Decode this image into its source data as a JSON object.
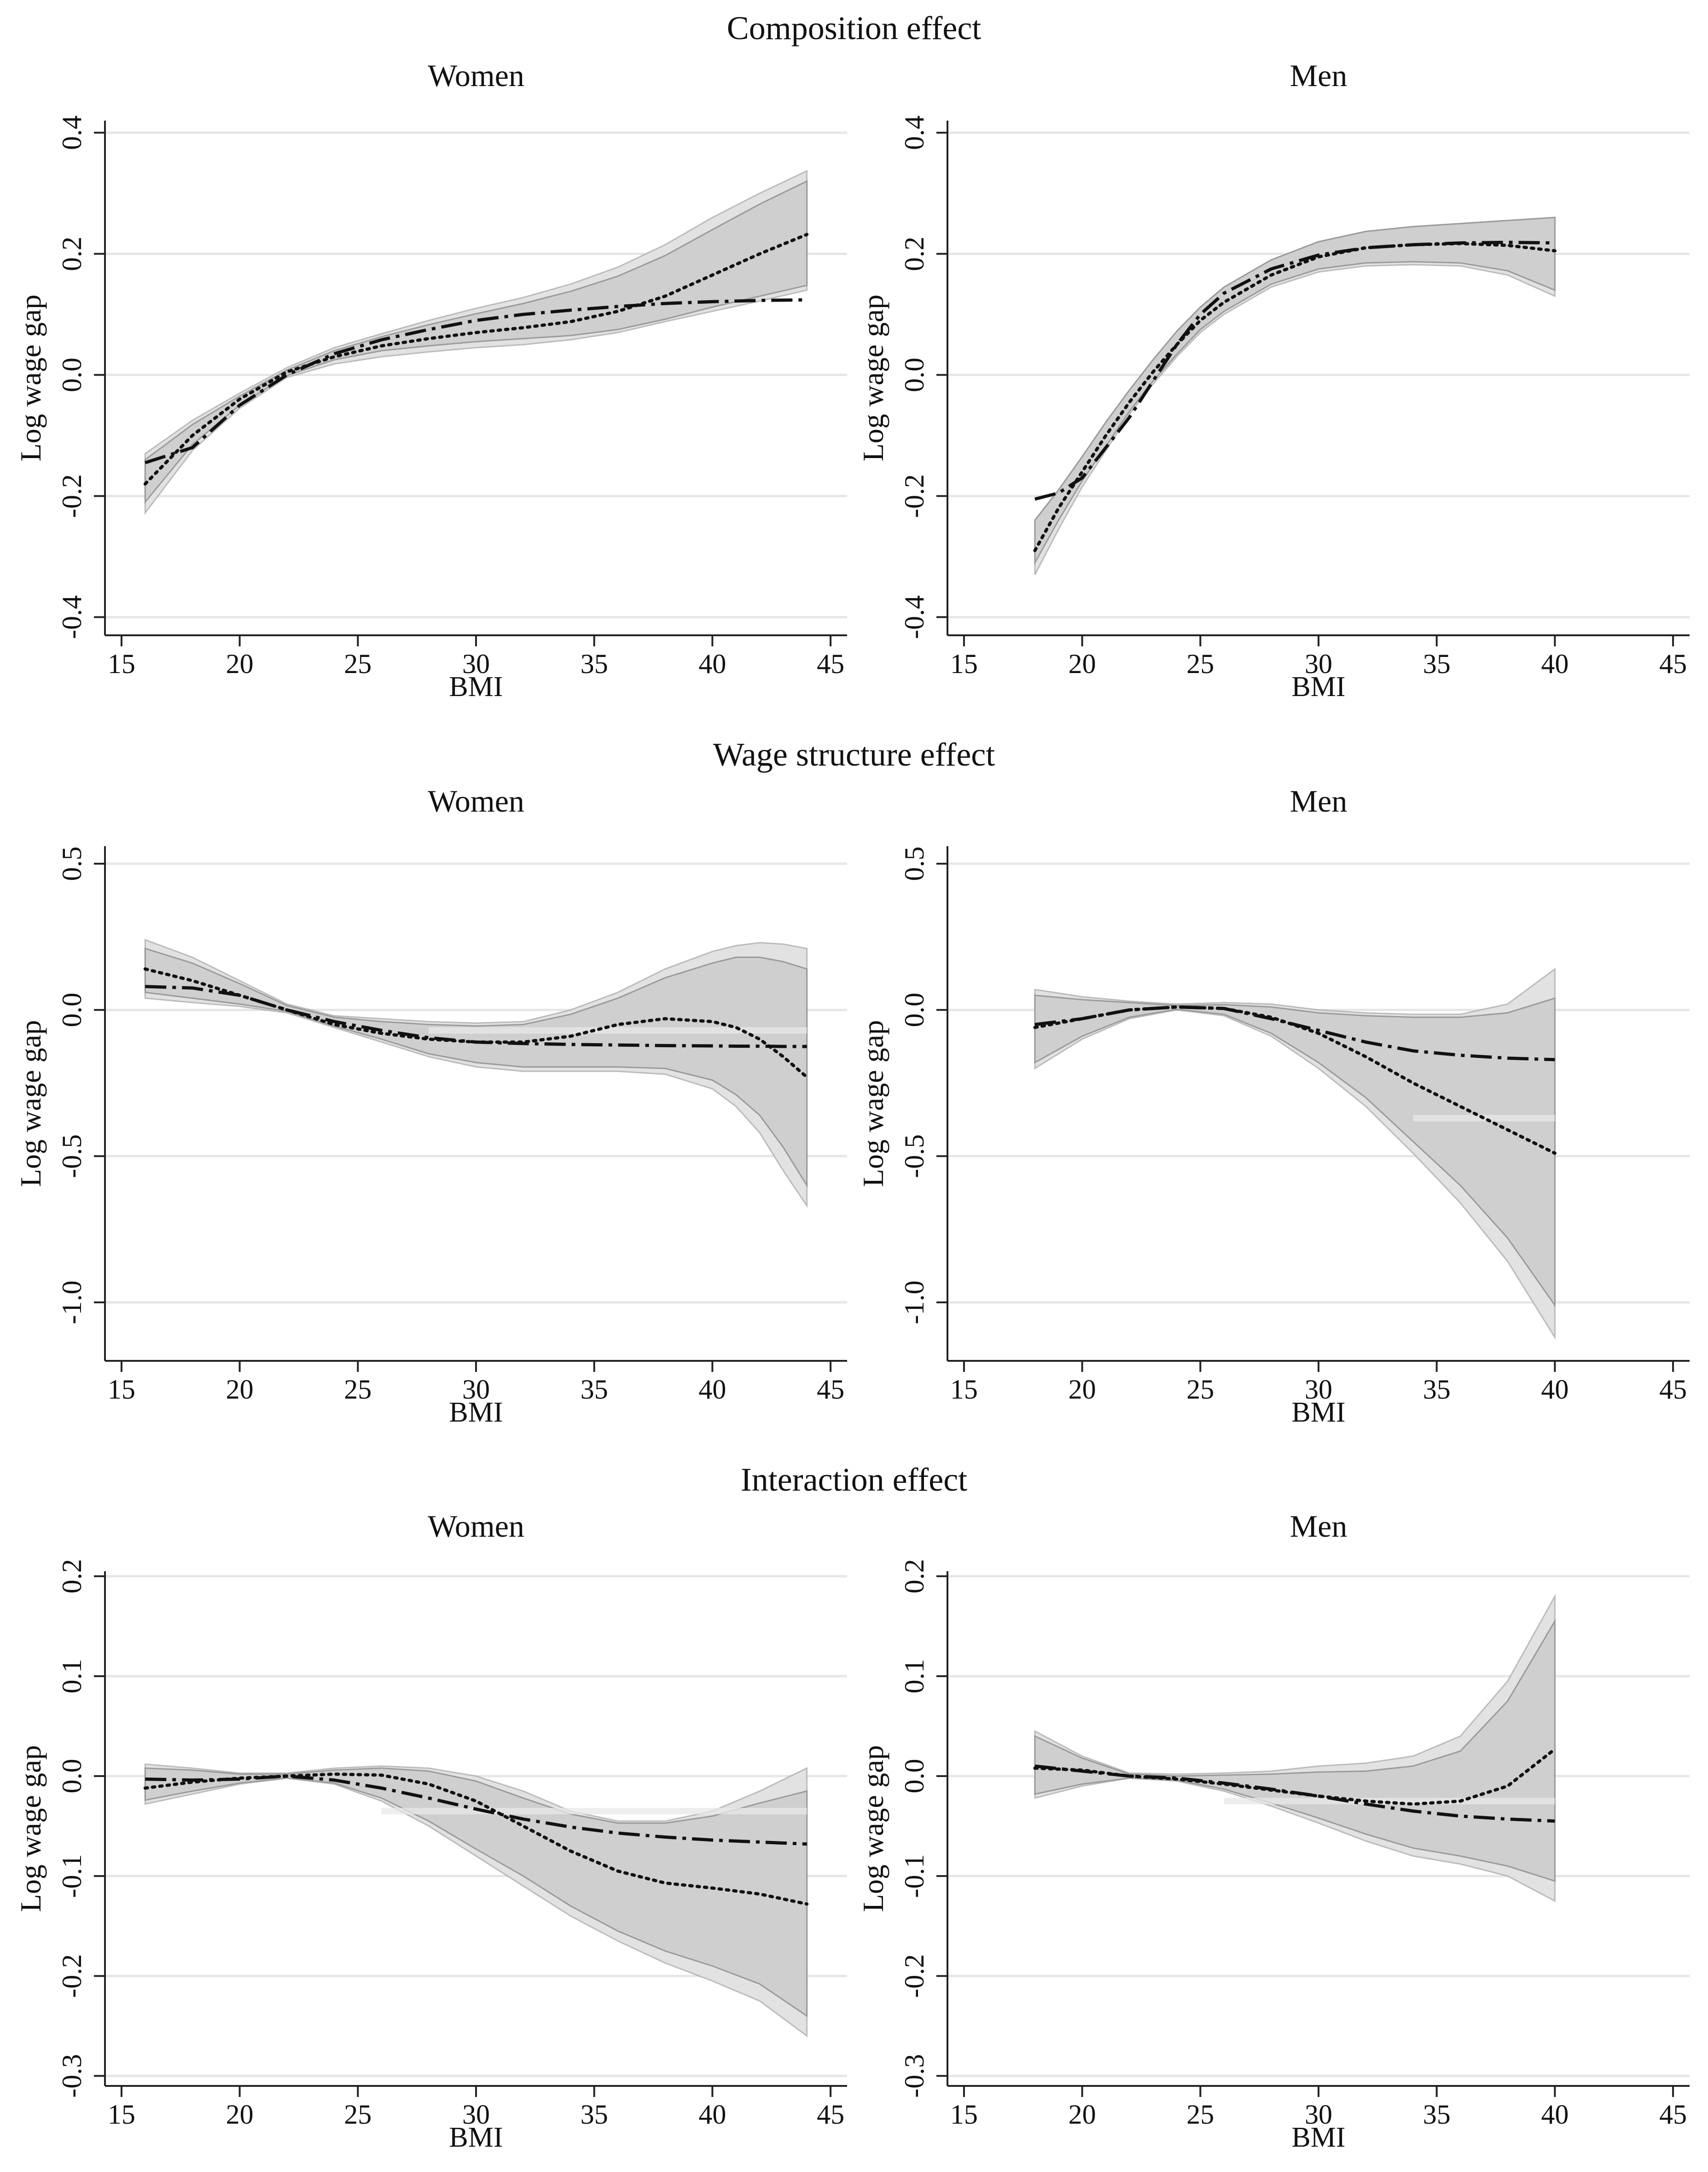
{
  "colors": {
    "grid": "#e6e6e6",
    "axis": "#222222",
    "band_outer": "#e2e2e2",
    "band_inner": "#cfcfcf",
    "band_edge": "#9a9a9a",
    "line": "#111111"
  },
  "sections": [
    {
      "title": "Composition effect"
    },
    {
      "title": "Wage structure effect"
    },
    {
      "title": "Interaction effect"
    }
  ],
  "chart_data": [
    {
      "type": "line",
      "section": "Composition effect",
      "title": "Women",
      "xlabel": "BMI",
      "ylabel": "Log wage gap",
      "xlim": [
        14.3,
        45.7
      ],
      "ylim": [
        -0.43,
        0.42
      ],
      "xticks": [
        15,
        20,
        25,
        30,
        35,
        40,
        45
      ],
      "yticks": [
        -0.4,
        -0.2,
        0.0,
        0.2,
        0.4
      ],
      "ytick_labels": [
        "-0.4",
        "-0.2",
        "0.0",
        "0.2",
        "0.4"
      ],
      "x": [
        16,
        18,
        20,
        22,
        24,
        26,
        28,
        30,
        32,
        34,
        36,
        38,
        40,
        42,
        44
      ],
      "series": [
        {
          "name": "dash-dot",
          "style": "dashdot",
          "values": [
            -0.145,
            -0.12,
            -0.05,
            0.0,
            0.035,
            0.058,
            0.075,
            0.09,
            0.1,
            0.107,
            0.113,
            0.118,
            0.121,
            0.123,
            0.124
          ]
        },
        {
          "name": "dotted",
          "style": "dotted",
          "values": [
            -0.18,
            -0.1,
            -0.04,
            0.005,
            0.03,
            0.048,
            0.06,
            0.07,
            0.078,
            0.088,
            0.105,
            0.13,
            0.165,
            0.2,
            0.232
          ]
        }
      ],
      "bands": [
        {
          "name": "outer",
          "lower": [
            -0.228,
            -0.125,
            -0.055,
            -0.004,
            0.018,
            0.03,
            0.038,
            0.045,
            0.05,
            0.058,
            0.07,
            0.088,
            0.105,
            0.122,
            0.14
          ],
          "upper": [
            -0.13,
            -0.075,
            -0.03,
            0.012,
            0.045,
            0.068,
            0.09,
            0.11,
            0.128,
            0.15,
            0.178,
            0.215,
            0.26,
            0.3,
            0.337
          ]
        },
        {
          "name": "inner",
          "lower": [
            -0.21,
            -0.115,
            -0.05,
            -0.001,
            0.025,
            0.04,
            0.048,
            0.055,
            0.06,
            0.065,
            0.075,
            0.092,
            0.112,
            0.13,
            0.148
          ],
          "upper": [
            -0.14,
            -0.082,
            -0.035,
            0.008,
            0.04,
            0.063,
            0.083,
            0.101,
            0.118,
            0.138,
            0.163,
            0.197,
            0.24,
            0.282,
            0.32
          ]
        }
      ]
    },
    {
      "type": "line",
      "section": "Composition effect",
      "title": "Men",
      "xlabel": "BMI",
      "ylabel": "Log wage gap",
      "xlim": [
        14.3,
        45.7
      ],
      "ylim": [
        -0.43,
        0.42
      ],
      "xticks": [
        15,
        20,
        25,
        30,
        35,
        40,
        45
      ],
      "yticks": [
        -0.4,
        -0.2,
        0.0,
        0.2,
        0.4
      ],
      "ytick_labels": [
        "-0.4",
        "-0.2",
        "0.0",
        "0.2",
        "0.4"
      ],
      "x": [
        18,
        19,
        20,
        21,
        22,
        23,
        24,
        25,
        26,
        28,
        30,
        32,
        34,
        36,
        38,
        40
      ],
      "series": [
        {
          "name": "dash-dot",
          "style": "dashdot",
          "values": [
            -0.205,
            -0.195,
            -0.17,
            -0.12,
            -0.07,
            -0.01,
            0.05,
            0.1,
            0.135,
            0.175,
            0.198,
            0.21,
            0.215,
            0.218,
            0.219,
            0.218
          ]
        },
        {
          "name": "dotted",
          "style": "dotted",
          "values": [
            -0.29,
            -0.22,
            -0.16,
            -0.1,
            -0.045,
            0.005,
            0.05,
            0.09,
            0.12,
            0.165,
            0.195,
            0.21,
            0.215,
            0.217,
            0.214,
            0.205
          ]
        }
      ],
      "bands": [
        {
          "name": "outer",
          "lower": [
            -0.33,
            -0.255,
            -0.185,
            -0.125,
            -0.065,
            -0.015,
            0.03,
            0.07,
            0.1,
            0.145,
            0.17,
            0.18,
            0.182,
            0.18,
            0.165,
            0.13
          ]
        },
        {
          "name": "inner",
          "lower": [
            -0.31,
            -0.24,
            -0.175,
            -0.118,
            -0.06,
            -0.01,
            0.034,
            0.075,
            0.105,
            0.15,
            0.175,
            0.185,
            0.187,
            0.185,
            0.172,
            0.14
          ],
          "upper": [
            -0.24,
            -0.19,
            -0.135,
            -0.078,
            -0.025,
            0.025,
            0.072,
            0.112,
            0.145,
            0.19,
            0.22,
            0.237,
            0.245,
            0.25,
            0.255,
            0.26
          ]
        }
      ]
    },
    {
      "type": "line",
      "section": "Wage structure effect",
      "title": "Women",
      "xlabel": "BMI",
      "ylabel": "Log wage gap",
      "xlim": [
        14.3,
        45.7
      ],
      "ylim": [
        -1.2,
        0.56
      ],
      "xticks": [
        15,
        20,
        25,
        30,
        35,
        40,
        45
      ],
      "yticks": [
        -1.0,
        -0.5,
        0.0,
        0.5
      ],
      "ytick_labels": [
        "-1.0",
        "-0.5",
        "0.0",
        "0.5"
      ],
      "x": [
        16,
        18,
        20,
        22,
        24,
        26,
        28,
        30,
        32,
        34,
        36,
        38,
        40,
        41,
        42,
        43,
        44
      ],
      "series": [
        {
          "name": "dash-dot",
          "style": "dashdot",
          "values": [
            0.08,
            0.075,
            0.05,
            0.0,
            -0.04,
            -0.07,
            -0.095,
            -0.11,
            -0.115,
            -0.118,
            -0.12,
            -0.122,
            -0.123,
            -0.124,
            -0.124,
            -0.125,
            -0.125
          ]
        },
        {
          "name": "dotted",
          "style": "dotted",
          "values": [
            0.14,
            0.1,
            0.05,
            0.0,
            -0.05,
            -0.08,
            -0.1,
            -0.11,
            -0.11,
            -0.09,
            -0.05,
            -0.03,
            -0.04,
            -0.06,
            -0.1,
            -0.16,
            -0.23
          ]
        }
      ],
      "bands": [
        {
          "name": "outer",
          "lower": [
            0.04,
            0.025,
            0.012,
            -0.01,
            -0.06,
            -0.11,
            -0.16,
            -0.195,
            -0.21,
            -0.21,
            -0.21,
            -0.22,
            -0.27,
            -0.33,
            -0.42,
            -0.55,
            -0.67
          ],
          "upper": [
            0.24,
            0.18,
            0.1,
            0.02,
            -0.02,
            -0.03,
            -0.04,
            -0.045,
            -0.04,
            0.0,
            0.06,
            0.14,
            0.2,
            0.22,
            0.23,
            0.225,
            0.21
          ]
        },
        {
          "name": "inner",
          "lower": [
            0.06,
            0.04,
            0.02,
            -0.005,
            -0.055,
            -0.1,
            -0.15,
            -0.18,
            -0.195,
            -0.195,
            -0.195,
            -0.2,
            -0.24,
            -0.29,
            -0.36,
            -0.47,
            -0.6
          ],
          "upper": [
            0.21,
            0.16,
            0.09,
            0.015,
            -0.025,
            -0.04,
            -0.05,
            -0.055,
            -0.05,
            -0.015,
            0.04,
            0.11,
            0.16,
            0.18,
            0.18,
            0.165,
            0.14
          ]
        }
      ],
      "highlight": {
        "from_x": 28,
        "to_x": 44,
        "y": -0.07
      }
    },
    {
      "type": "line",
      "section": "Wage structure effect",
      "title": "Men",
      "xlabel": "BMI",
      "ylabel": "Log wage gap",
      "xlim": [
        14.3,
        45.7
      ],
      "ylim": [
        -1.2,
        0.56
      ],
      "xticks": [
        15,
        20,
        25,
        30,
        35,
        40,
        45
      ],
      "yticks": [
        -1.0,
        -0.5,
        0.0,
        0.5
      ],
      "ytick_labels": [
        "-1.0",
        "-0.5",
        "0.0",
        "0.5"
      ],
      "x": [
        18,
        20,
        22,
        24,
        26,
        28,
        30,
        32,
        34,
        36,
        38,
        40
      ],
      "series": [
        {
          "name": "dash-dot",
          "style": "dashdot",
          "values": [
            -0.05,
            -0.03,
            0.0,
            0.01,
            0.005,
            -0.03,
            -0.07,
            -0.11,
            -0.14,
            -0.155,
            -0.165,
            -0.17
          ]
        },
        {
          "name": "dotted",
          "style": "dotted",
          "values": [
            -0.06,
            -0.03,
            0.0,
            0.01,
            0.005,
            -0.025,
            -0.08,
            -0.16,
            -0.25,
            -0.33,
            -0.41,
            -0.49
          ]
        }
      ],
      "bands": [
        {
          "name": "outer",
          "lower": [
            -0.2,
            -0.1,
            -0.03,
            0.0,
            -0.02,
            -0.09,
            -0.2,
            -0.33,
            -0.49,
            -0.66,
            -0.86,
            -1.12
          ],
          "upper": [
            0.07,
            0.045,
            0.03,
            0.02,
            0.025,
            0.02,
            0.0,
            -0.01,
            -0.015,
            -0.015,
            0.02,
            0.14
          ]
        },
        {
          "name": "inner",
          "lower": [
            -0.18,
            -0.09,
            -0.025,
            0.002,
            -0.015,
            -0.08,
            -0.18,
            -0.3,
            -0.45,
            -0.6,
            -0.78,
            -1.01
          ],
          "upper": [
            0.05,
            0.035,
            0.025,
            0.015,
            0.018,
            0.01,
            -0.01,
            -0.02,
            -0.025,
            -0.025,
            -0.01,
            0.04
          ]
        }
      ],
      "highlight": {
        "from_x": 34,
        "to_x": 40,
        "y": -0.37
      }
    },
    {
      "type": "line",
      "section": "Interaction effect",
      "title": "Women",
      "xlabel": "BMI",
      "ylabel": "Log wage gap",
      "xlim": [
        14.3,
        45.7
      ],
      "ylim": [
        -0.31,
        0.205
      ],
      "xticks": [
        15,
        20,
        25,
        30,
        35,
        40,
        45
      ],
      "yticks": [
        -0.3,
        -0.2,
        -0.1,
        0.0,
        0.1,
        0.2
      ],
      "ytick_labels": [
        "-0.3",
        "-0.2",
        "-0.1",
        "0.0",
        "0.1",
        "0.2"
      ],
      "x": [
        16,
        18,
        20,
        22,
        24,
        26,
        28,
        30,
        32,
        34,
        36,
        38,
        40,
        42,
        44
      ],
      "series": [
        {
          "name": "dash-dot",
          "style": "dashdot",
          "values": [
            -0.003,
            -0.004,
            -0.003,
            0.0,
            -0.004,
            -0.012,
            -0.022,
            -0.033,
            -0.043,
            -0.051,
            -0.057,
            -0.061,
            -0.064,
            -0.066,
            -0.068
          ]
        },
        {
          "name": "dotted",
          "style": "dotted",
          "values": [
            -0.012,
            -0.006,
            -0.002,
            0.0,
            0.002,
            0.001,
            -0.008,
            -0.025,
            -0.05,
            -0.075,
            -0.095,
            -0.107,
            -0.112,
            -0.118,
            -0.128
          ]
        }
      ],
      "bands": [
        {
          "name": "outer",
          "lower": [
            -0.028,
            -0.018,
            -0.008,
            -0.002,
            -0.008,
            -0.025,
            -0.05,
            -0.08,
            -0.11,
            -0.14,
            -0.165,
            -0.187,
            -0.205,
            -0.225,
            -0.26
          ],
          "upper": [
            0.012,
            0.008,
            0.003,
            0.003,
            0.008,
            0.01,
            0.008,
            0.0,
            -0.015,
            -0.035,
            -0.045,
            -0.045,
            -0.035,
            -0.015,
            0.008
          ]
        },
        {
          "name": "inner",
          "lower": [
            -0.024,
            -0.015,
            -0.007,
            -0.002,
            -0.007,
            -0.022,
            -0.045,
            -0.073,
            -0.1,
            -0.13,
            -0.155,
            -0.175,
            -0.19,
            -0.208,
            -0.24
          ],
          "upper": [
            0.008,
            0.006,
            0.002,
            0.002,
            0.006,
            0.008,
            0.005,
            -0.005,
            -0.022,
            -0.038,
            -0.047,
            -0.047,
            -0.04,
            -0.027,
            -0.015
          ]
        }
      ],
      "highlight": {
        "from_x": 26,
        "to_x": 44,
        "y": -0.035
      }
    },
    {
      "type": "line",
      "section": "Interaction effect",
      "title": "Men",
      "xlabel": "BMI",
      "ylabel": "Log wage gap",
      "xlim": [
        14.3,
        45.7
      ],
      "ylim": [
        -0.31,
        0.205
      ],
      "xticks": [
        15,
        20,
        25,
        30,
        35,
        40,
        45
      ],
      "yticks": [
        -0.3,
        -0.2,
        -0.1,
        0.0,
        0.1,
        0.2
      ],
      "ytick_labels": [
        "-0.3",
        "-0.2",
        "-0.1",
        "0.0",
        "0.1",
        "0.2"
      ],
      "x": [
        18,
        20,
        22,
        24,
        26,
        28,
        30,
        32,
        34,
        36,
        38,
        40
      ],
      "series": [
        {
          "name": "dash-dot",
          "style": "dashdot",
          "values": [
            0.01,
            0.005,
            0.0,
            -0.002,
            -0.007,
            -0.013,
            -0.02,
            -0.028,
            -0.035,
            -0.04,
            -0.043,
            -0.045
          ]
        },
        {
          "name": "dotted",
          "style": "dotted",
          "values": [
            0.008,
            0.006,
            0.0,
            -0.003,
            -0.008,
            -0.014,
            -0.02,
            -0.025,
            -0.028,
            -0.025,
            -0.01,
            0.027
          ]
        }
      ],
      "bands": [
        {
          "name": "outer",
          "lower": [
            -0.022,
            -0.01,
            -0.002,
            -0.005,
            -0.015,
            -0.03,
            -0.047,
            -0.065,
            -0.08,
            -0.088,
            -0.1,
            -0.125
          ],
          "upper": [
            0.045,
            0.02,
            0.003,
            0.002,
            0.003,
            0.005,
            0.01,
            0.013,
            0.02,
            0.04,
            0.095,
            0.18
          ]
        },
        {
          "name": "inner",
          "lower": [
            -0.018,
            -0.008,
            -0.002,
            -0.004,
            -0.013,
            -0.027,
            -0.042,
            -0.058,
            -0.072,
            -0.08,
            -0.09,
            -0.105
          ],
          "upper": [
            0.04,
            0.018,
            0.002,
            0.0,
            0.001,
            0.002,
            0.004,
            0.005,
            0.01,
            0.025,
            0.075,
            0.155
          ]
        }
      ],
      "highlight": {
        "from_x": 26,
        "to_x": 40,
        "y": -0.025
      }
    }
  ]
}
